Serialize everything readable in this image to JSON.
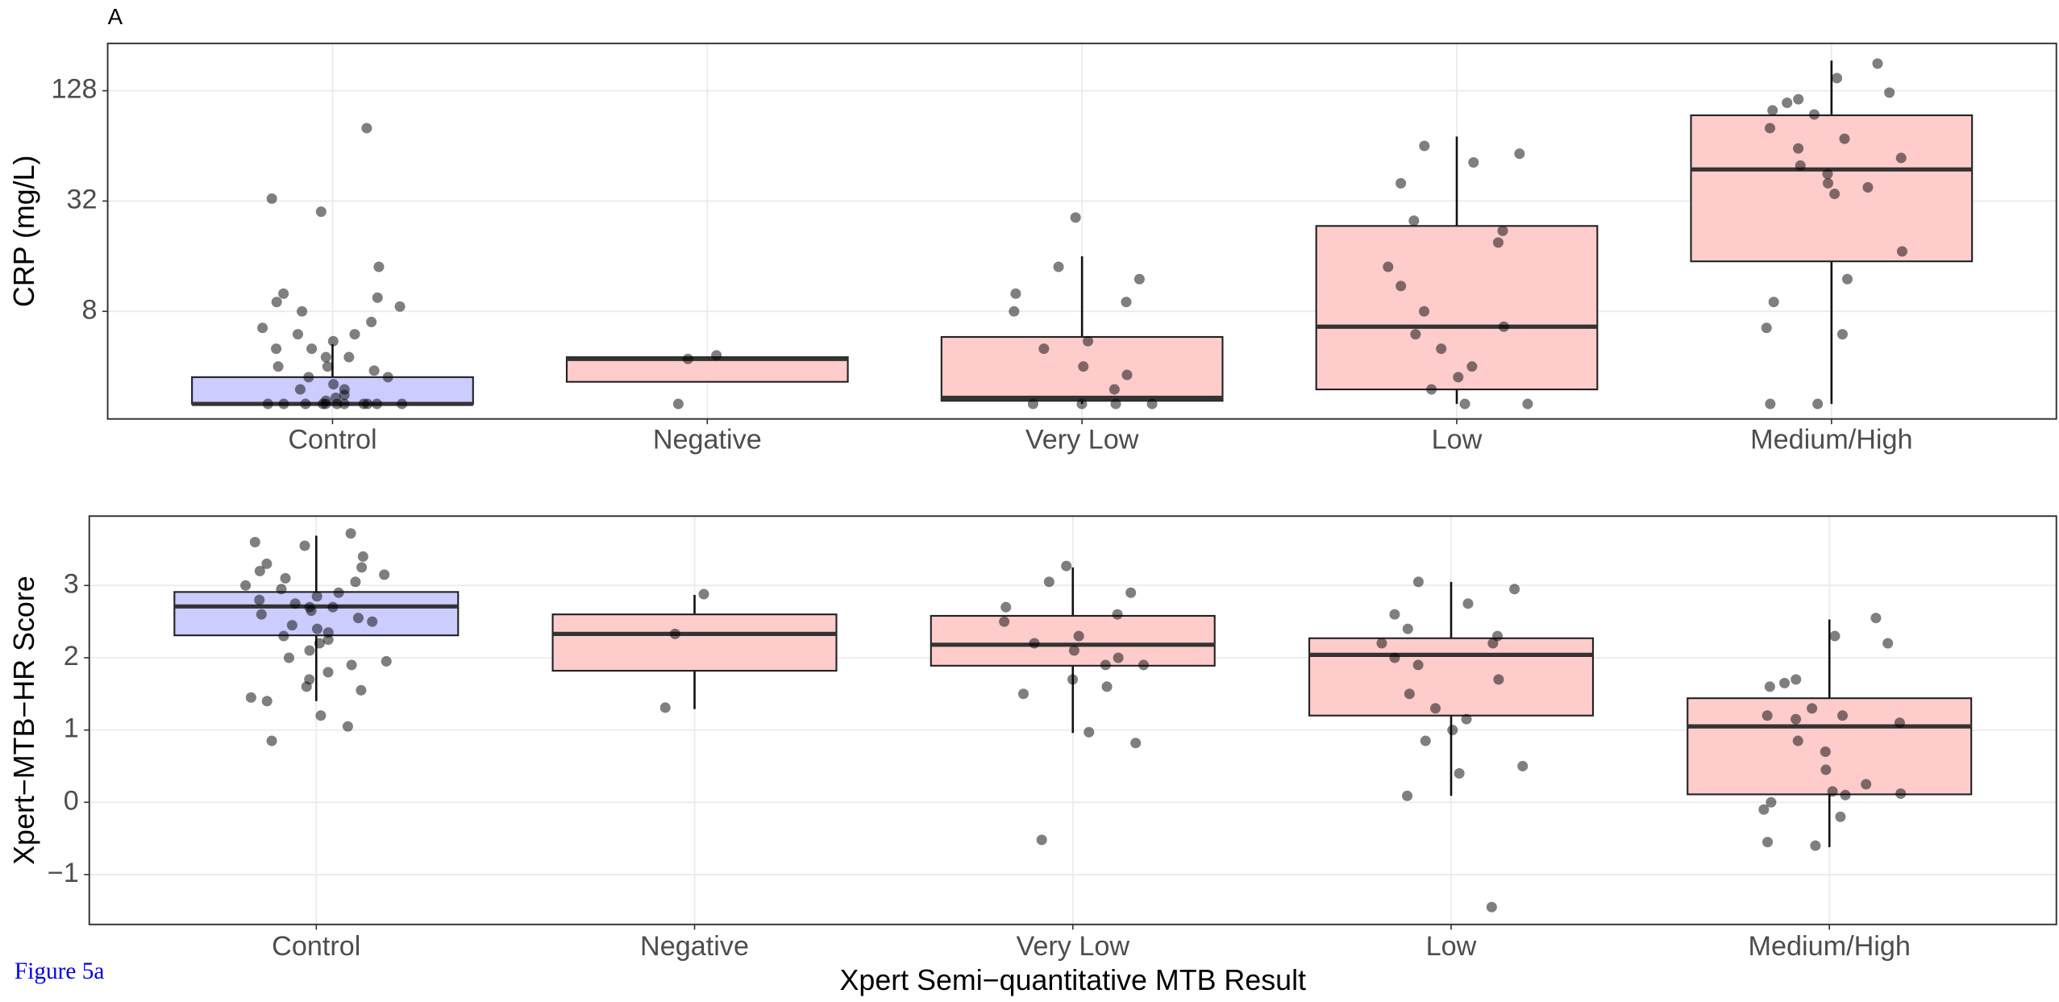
{
  "panel_label": "A",
  "figure_link": "Figure 5a",
  "chart_data": [
    {
      "type": "box",
      "y_label": "CRP (mg/L)",
      "log_scale": true,
      "grid": true,
      "categories": [
        "Control",
        "Negative",
        "Very Low",
        "Low",
        "Medium/High"
      ],
      "box_colors": [
        "#ccccff",
        "#ffcccc",
        "#ffcccc",
        "#ffcccc",
        "#ffcccc"
      ],
      "point_color": "#000000",
      "ylim": [
        2.07,
        232
      ],
      "yticks": [
        8,
        32,
        128
      ],
      "boxes": [
        {
          "whisker_low": 2.5,
          "q1": 2.5,
          "median": 2.5,
          "q3": 3.5,
          "whisker_high": 5.3
        },
        {
          "whisker_low": 3.3,
          "q1": 3.3,
          "median": 4.4,
          "q3": 4.5,
          "whisker_high": 4.5
        },
        {
          "whisker_low": 2.5,
          "q1": 2.6,
          "median": 2.7,
          "q3": 5.8,
          "whisker_high": 16
        },
        {
          "whisker_low": 2.5,
          "q1": 3.0,
          "median": 6.6,
          "q3": 23.4,
          "whisker_high": 72
        },
        {
          "whisker_low": 2.5,
          "q1": 15,
          "median": 47.6,
          "q3": 94,
          "whisker_high": 187
        }
      ],
      "points": [
        [
          80,
          33,
          28,
          14,
          10,
          9.5,
          9,
          8.5,
          8,
          7,
          6.5,
          6,
          6,
          5.5,
          5,
          5,
          4.5,
          4.5,
          4,
          4,
          3.8,
          3.5,
          3.5,
          3.2,
          3,
          3,
          2.8,
          2.7,
          2.6,
          2.5,
          2.5,
          2.5,
          2.5,
          2.5,
          2.5,
          2.5,
          2.5,
          2.5,
          2.5,
          2.5
        ],
        [
          4.6,
          4.4,
          2.5
        ],
        [
          26,
          14,
          12,
          10,
          9,
          8,
          5.5,
          5,
          4,
          3.6,
          3,
          2.5,
          2.5,
          2.5,
          2.5
        ],
        [
          64,
          58,
          52,
          40,
          25,
          22,
          19,
          14,
          11,
          8,
          6.6,
          6,
          5,
          4,
          3.5,
          3,
          2.5,
          2.5
        ],
        [
          180,
          150,
          125,
          115,
          110,
          100,
          95,
          80,
          70,
          62,
          55,
          50,
          45,
          40,
          38,
          35,
          17,
          12,
          9,
          6.5,
          6,
          2.5,
          2.5
        ]
      ]
    },
    {
      "type": "box",
      "y_label": "Xpert−MTB−HR Score",
      "x_label": "Xpert Semi−quantitative MTB Result",
      "log_scale": false,
      "grid": true,
      "categories": [
        "Control",
        "Negative",
        "Very Low",
        "Low",
        "Medium/High"
      ],
      "box_colors": [
        "#ccccff",
        "#ffcccc",
        "#ffcccc",
        "#ffcccc",
        "#ffcccc"
      ],
      "point_color": "#000000",
      "ylim": [
        -1.69,
        3.96
      ],
      "yticks": [
        {
          "value": -1,
          "label": "−1"
        },
        0,
        1,
        2,
        3
      ],
      "boxes": [
        {
          "whisker_low": 1.4,
          "q1": 2.31,
          "median": 2.71,
          "q3": 2.91,
          "whisker_high": 3.69
        },
        {
          "whisker_low": 1.29,
          "q1": 1.82,
          "median": 2.33,
          "q3": 2.6,
          "whisker_high": 2.87
        },
        {
          "whisker_low": 0.96,
          "q1": 1.89,
          "median": 2.18,
          "q3": 2.58,
          "whisker_high": 3.25
        },
        {
          "whisker_low": 0.09,
          "q1": 1.2,
          "median": 2.04,
          "q3": 2.27,
          "whisker_high": 3.05
        },
        {
          "whisker_low": -0.62,
          "q1": 0.11,
          "median": 1.05,
          "q3": 1.44,
          "whisker_high": 2.53
        }
      ],
      "points": [
        [
          3.72,
          3.6,
          3.55,
          3.4,
          3.3,
          3.25,
          3.2,
          3.15,
          3.1,
          3.05,
          3.0,
          2.95,
          2.9,
          2.85,
          2.8,
          2.75,
          2.7,
          2.7,
          2.65,
          2.6,
          2.55,
          2.5,
          2.45,
          2.4,
          2.35,
          2.3,
          2.25,
          2.2,
          2.1,
          2.0,
          1.95,
          1.9,
          1.8,
          1.7,
          1.6,
          1.55,
          1.45,
          1.4,
          1.2,
          1.05,
          0.85
        ],
        [
          2.88,
          2.33,
          1.31
        ],
        [
          3.27,
          3.05,
          2.9,
          2.7,
          2.6,
          2.5,
          2.3,
          2.2,
          2.1,
          2.0,
          1.9,
          1.9,
          1.7,
          1.6,
          1.5,
          0.97,
          0.82,
          -0.52
        ],
        [
          3.05,
          2.95,
          2.75,
          2.6,
          2.4,
          2.3,
          2.2,
          2.2,
          2.0,
          1.9,
          1.7,
          1.5,
          1.3,
          1.15,
          1.0,
          0.85,
          0.5,
          0.4,
          0.09,
          -1.45
        ],
        [
          2.55,
          2.3,
          2.2,
          1.7,
          1.65,
          1.6,
          1.3,
          1.2,
          1.2,
          1.15,
          1.1,
          0.85,
          0.7,
          0.45,
          0.25,
          0.15,
          0.12,
          0.1,
          0.0,
          -0.1,
          -0.2,
          -0.55,
          -0.6
        ]
      ]
    }
  ]
}
